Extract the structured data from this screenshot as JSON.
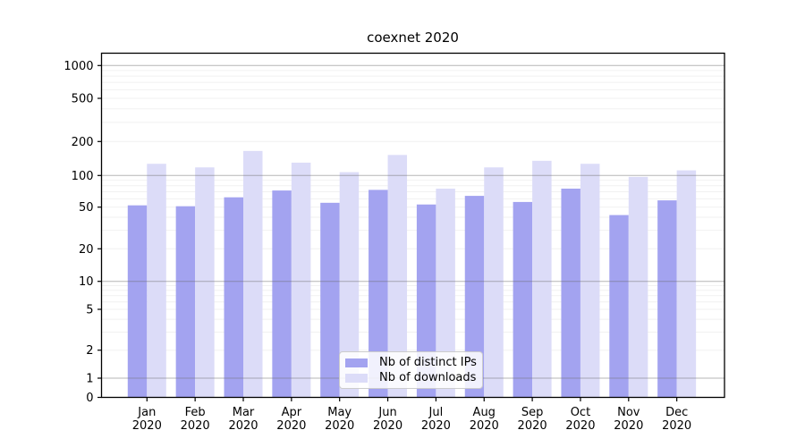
{
  "title": "coexnet 2020",
  "chart_data": {
    "type": "bar",
    "title": "coexnet 2020",
    "xlabel": "",
    "ylabel": "",
    "yscale": "symlog",
    "ylim": [
      0,
      1000
    ],
    "yticks": [
      0,
      1,
      2,
      5,
      10,
      20,
      50,
      100,
      200,
      500,
      1000
    ],
    "grid": true,
    "legend_position": "lower center",
    "categories": [
      "Jan 2020",
      "Feb 2020",
      "Mar 2020",
      "Apr 2020",
      "May 2020",
      "Jun 2020",
      "Jul 2020",
      "Aug 2020",
      "Sep 2020",
      "Oct 2020",
      "Nov 2020",
      "Dec 2020"
    ],
    "series": [
      {
        "name": "Nb of distinct IPs",
        "color": "#a3a3f0",
        "values": [
          52,
          51,
          62,
          72,
          55,
          73,
          53,
          64,
          56,
          75,
          42,
          58
        ]
      },
      {
        "name": "Nb of downloads",
        "color": "#dcdcf8",
        "values": [
          127,
          118,
          165,
          130,
          107,
          152,
          75,
          118,
          135,
          127,
          97,
          111
        ]
      }
    ]
  }
}
